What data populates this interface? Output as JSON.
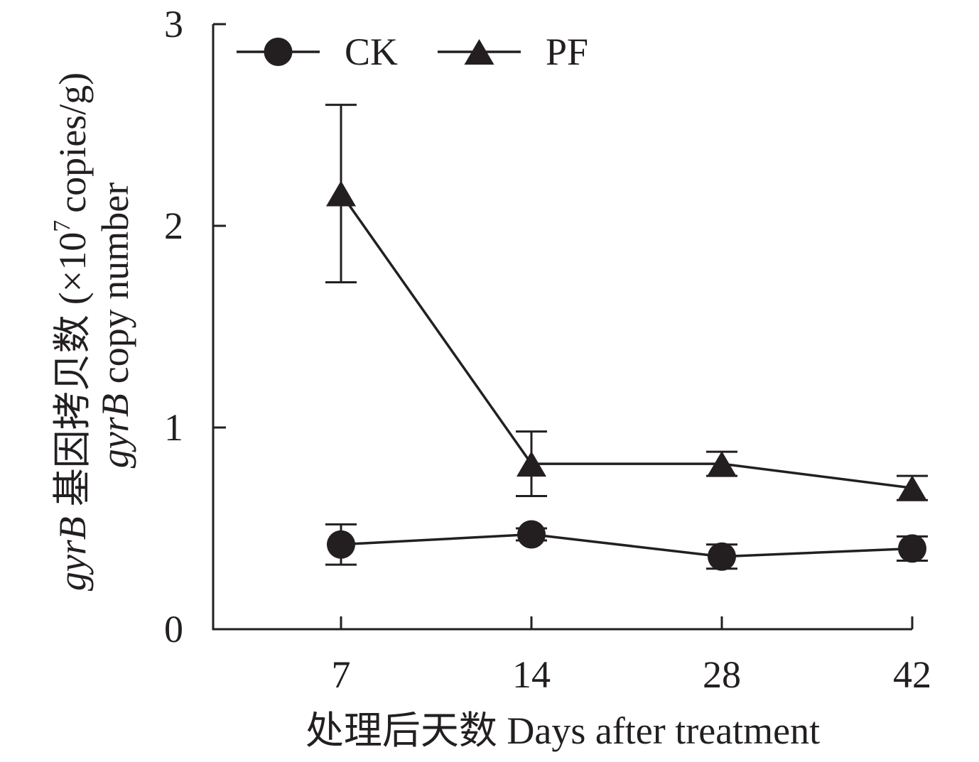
{
  "chart_data": {
    "type": "line",
    "categories": [
      "7",
      "14",
      "28",
      "42"
    ],
    "series": [
      {
        "name": "CK",
        "marker": "circle",
        "values": [
          0.42,
          0.47,
          0.36,
          0.4
        ],
        "error": [
          0.1,
          0.03,
          0.06,
          0.06
        ]
      },
      {
        "name": "PF",
        "marker": "triangle",
        "values": [
          2.16,
          0.82,
          0.82,
          0.7
        ],
        "error": [
          0.44,
          0.16,
          0.06,
          0.06
        ]
      }
    ],
    "xlabel": "处理后天数 Days after treatment",
    "ylabel": {
      "line1": {
        "gene": "gyrB",
        "label": "基因拷贝数",
        "unit_prefix": "(×10",
        "unit_exponent": "7",
        "unit_suffix": "copies/g)"
      },
      "line2": {
        "gene": "gyrB",
        "label": "copy number"
      }
    },
    "ylim": [
      0,
      3
    ],
    "yticks": [
      0,
      1,
      2,
      3
    ],
    "grid": false,
    "legend": "top-left",
    "colors": {
      "ink": "#231f20",
      "background": "#ffffff"
    }
  }
}
